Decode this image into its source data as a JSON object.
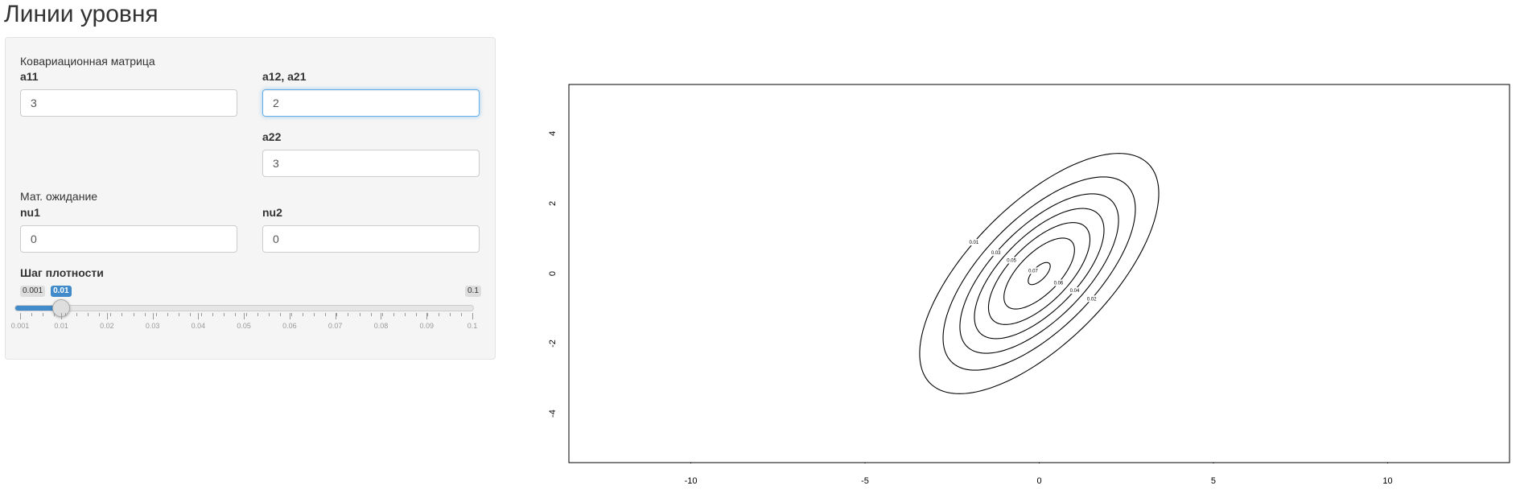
{
  "title": "Линии уровня",
  "sidebar": {
    "cov_section_label": "Ковариационная матрица",
    "a11": {
      "label": "a11",
      "value": "3"
    },
    "a12": {
      "label": "a12, a21",
      "value": "2"
    },
    "a22": {
      "label": "a22",
      "value": "3"
    },
    "mean_section_label": "Мат. ожидание",
    "nu1": {
      "label": "nu1",
      "value": "0"
    },
    "nu2": {
      "label": "nu2",
      "value": "0"
    },
    "slider": {
      "label": "Шаг плотности",
      "min_label": "0.001",
      "max_label": "0.1",
      "value_label": "0.01",
      "min": 0.001,
      "max": 0.1,
      "value": 0.01,
      "grid": [
        "0.001",
        "0.01",
        "0.02",
        "0.03",
        "0.04",
        "0.05",
        "0.06",
        "0.07",
        "0.08",
        "0.09",
        "0.1"
      ]
    }
  },
  "chart_data": {
    "type": "contour",
    "title": "",
    "xlabel": "",
    "ylabel": "",
    "xlim": [
      -13.5,
      13.5
    ],
    "ylim": [
      -5.4,
      5.4
    ],
    "x_ticks": [
      -10,
      -5,
      0,
      5,
      10
    ],
    "y_ticks": [
      -4,
      -2,
      0,
      2,
      4
    ],
    "distribution": {
      "mean": [
        0,
        0
      ],
      "covariance": [
        [
          3,
          2
        ],
        [
          2,
          3
        ]
      ]
    },
    "levels": [
      {
        "value": 0.01,
        "label": "0.01"
      },
      {
        "value": 0.02,
        "label": "0.02"
      },
      {
        "value": 0.03,
        "label": "0.03"
      },
      {
        "value": 0.04,
        "label": "0.04"
      },
      {
        "value": 0.05,
        "label": "0.05"
      },
      {
        "value": 0.06,
        "label": "0.06"
      },
      {
        "value": 0.07,
        "label": "0.07"
      }
    ]
  }
}
